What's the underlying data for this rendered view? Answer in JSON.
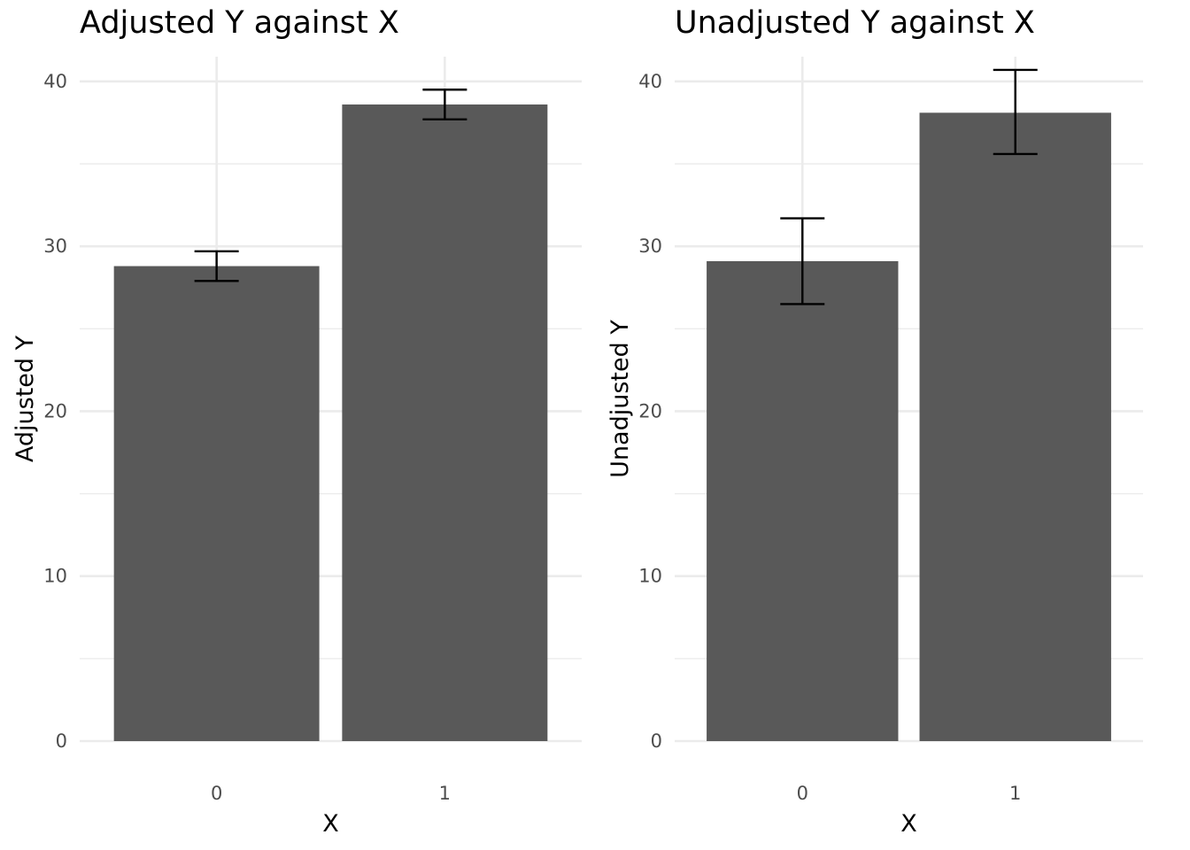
{
  "chart_data": [
    {
      "type": "bar",
      "title": "Adjusted Y against X",
      "xlabel": "X",
      "ylabel": "Adjusted Y",
      "categories": [
        "0",
        "1"
      ],
      "values": [
        28.8,
        38.6
      ],
      "error_low": [
        27.9,
        37.7
      ],
      "error_high": [
        29.7,
        39.5
      ],
      "ylim": [
        0,
        41.5
      ],
      "yticks": [
        0,
        10,
        20,
        30,
        40
      ],
      "grid": true,
      "bar_color": "#595959"
    },
    {
      "type": "bar",
      "title": "Unadjusted Y against X",
      "xlabel": "X",
      "ylabel": "Unadjusted Y",
      "categories": [
        "0",
        "1"
      ],
      "values": [
        29.1,
        38.1
      ],
      "error_low": [
        26.5,
        35.6
      ],
      "error_high": [
        31.7,
        40.7
      ],
      "ylim": [
        0,
        41.5
      ],
      "yticks": [
        0,
        10,
        20,
        30,
        40
      ],
      "grid": true,
      "bar_color": "#595959"
    }
  ]
}
